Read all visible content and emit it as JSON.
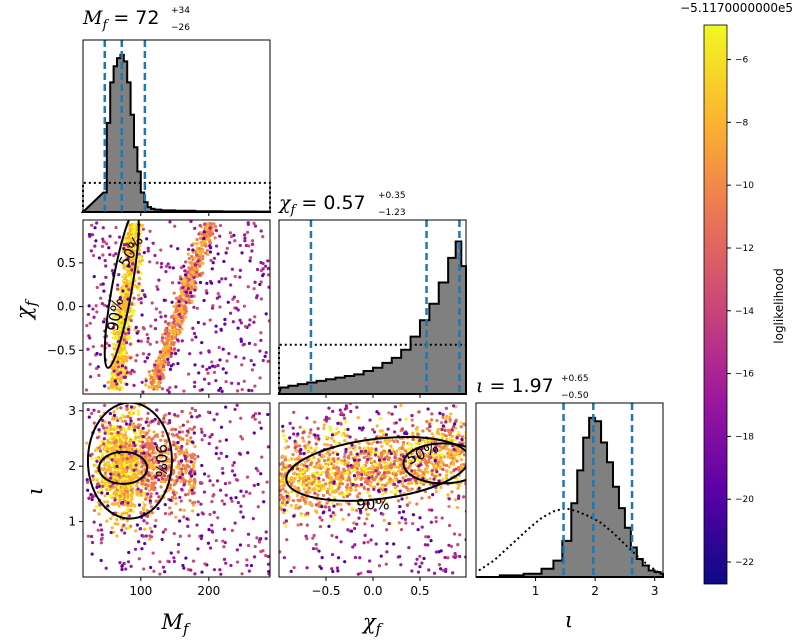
{
  "chart_data": {
    "type": "corner",
    "parameters": [
      {
        "key": "Mf",
        "symbol": "M",
        "sub": "f",
        "title_value": "72",
        "err_plus": "+34",
        "err_minus": "−26",
        "range": [
          15,
          290
        ],
        "ticks": [
          100,
          200
        ],
        "tick_labels": [
          "100",
          "200"
        ],
        "quantiles": [
          47,
          72,
          106
        ]
      },
      {
        "key": "chif",
        "symbol": "χ",
        "sub": "f",
        "title_value": "0.57",
        "err_plus": "+0.35",
        "err_minus": "−1.23",
        "range": [
          -1.0,
          0.99
        ],
        "ticks": [
          -0.5,
          0.0,
          0.5
        ],
        "tick_labels": [
          "−0.5",
          "0.0",
          "0.5"
        ],
        "quantiles": [
          -0.66,
          0.57,
          0.92
        ]
      },
      {
        "key": "iota",
        "symbol": "ι",
        "sub": "",
        "title_value": "1.97",
        "err_plus": "+0.65",
        "err_minus": "−0.50",
        "range": [
          0.0,
          3.14
        ],
        "ticks": [
          1,
          2,
          3
        ],
        "tick_labels": [
          "1",
          "2",
          "3"
        ],
        "quantiles": [
          1.47,
          1.97,
          2.62
        ]
      }
    ],
    "histograms": {
      "Mf": {
        "bins": [
          [
            45,
            0.12
          ],
          [
            50,
            0.55
          ],
          [
            55,
            0.8
          ],
          [
            60,
            0.9
          ],
          [
            65,
            0.95
          ],
          [
            70,
            0.97
          ],
          [
            75,
            0.93
          ],
          [
            80,
            0.8
          ],
          [
            85,
            0.6
          ],
          [
            90,
            0.4
          ],
          [
            95,
            0.25
          ],
          [
            100,
            0.12
          ],
          [
            105,
            0.06
          ],
          [
            110,
            0.03
          ],
          [
            115,
            0.02
          ],
          [
            120,
            0.015
          ],
          [
            130,
            0.01
          ],
          [
            150,
            0.008
          ],
          [
            180,
            0.005
          ],
          [
            220,
            0.003
          ],
          [
            270,
            0.002
          ]
        ],
        "prior_level": 0.18
      },
      "chif": {
        "bins": [
          [
            -0.98,
            0.04
          ],
          [
            -0.9,
            0.05
          ],
          [
            -0.8,
            0.06
          ],
          [
            -0.7,
            0.07
          ],
          [
            -0.6,
            0.08
          ],
          [
            -0.5,
            0.09
          ],
          [
            -0.4,
            0.1
          ],
          [
            -0.3,
            0.11
          ],
          [
            -0.2,
            0.12
          ],
          [
            -0.1,
            0.14
          ],
          [
            0.0,
            0.16
          ],
          [
            0.1,
            0.19
          ],
          [
            0.2,
            0.22
          ],
          [
            0.3,
            0.27
          ],
          [
            0.4,
            0.35
          ],
          [
            0.5,
            0.45
          ],
          [
            0.6,
            0.55
          ],
          [
            0.7,
            0.68
          ],
          [
            0.8,
            0.83
          ],
          [
            0.88,
            0.93
          ],
          [
            0.94,
            0.78
          ]
        ],
        "prior_level": 0.3
      },
      "iota": {
        "bins": [
          [
            0.05,
            0.0
          ],
          [
            0.4,
            0.01
          ],
          [
            0.8,
            0.02
          ],
          [
            1.1,
            0.05
          ],
          [
            1.3,
            0.1
          ],
          [
            1.45,
            0.22
          ],
          [
            1.6,
            0.45
          ],
          [
            1.7,
            0.65
          ],
          [
            1.8,
            0.85
          ],
          [
            1.9,
            0.97
          ],
          [
            2.0,
            0.95
          ],
          [
            2.1,
            0.82
          ],
          [
            2.2,
            0.7
          ],
          [
            2.3,
            0.55
          ],
          [
            2.4,
            0.42
          ],
          [
            2.5,
            0.3
          ],
          [
            2.6,
            0.18
          ],
          [
            2.7,
            0.11
          ],
          [
            2.8,
            0.07
          ],
          [
            2.9,
            0.04
          ],
          [
            3.0,
            0.03
          ],
          [
            3.1,
            0.02
          ]
        ],
        "prior": [
          [
            0.05,
            0.04
          ],
          [
            0.3,
            0.1
          ],
          [
            0.6,
            0.2
          ],
          [
            0.9,
            0.3
          ],
          [
            1.1,
            0.36
          ],
          [
            1.3,
            0.4
          ],
          [
            1.5,
            0.42
          ],
          [
            1.7,
            0.4
          ],
          [
            1.9,
            0.37
          ],
          [
            2.1,
            0.33
          ],
          [
            2.3,
            0.27
          ],
          [
            2.5,
            0.2
          ],
          [
            2.7,
            0.13
          ],
          [
            2.9,
            0.07
          ],
          [
            3.1,
            0.02
          ]
        ]
      }
    },
    "contour_labels": [
      "50%",
      "90%"
    ],
    "colorbar": {
      "label": "loglikelihood",
      "offset": "−5.1170000000e5",
      "ticks": [
        -6,
        -8,
        -10,
        -12,
        -14,
        -16,
        -18,
        -20,
        -22
      ],
      "tick_labels": [
        "−6",
        "−8",
        "−10",
        "−12",
        "−14",
        "−16",
        "−18",
        "−20",
        "−22"
      ],
      "range": [
        -22.7,
        -4.9
      ],
      "colormap": "plasma",
      "colors": [
        "#0d0887",
        "#5c01a6",
        "#9c179e",
        "#cc4778",
        "#ed7953",
        "#fdb42f",
        "#f0f921"
      ]
    },
    "styles": {
      "quantile_color": "#1f77b4",
      "hist_fill": "#808080",
      "prior_line": "#000000"
    }
  }
}
